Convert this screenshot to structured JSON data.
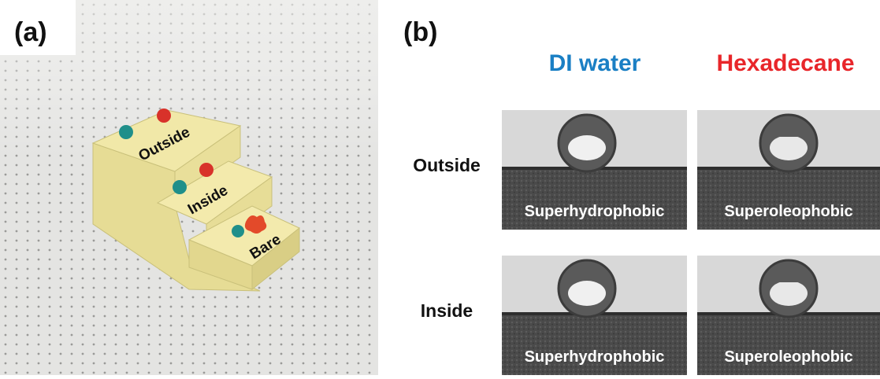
{
  "panel_a": {
    "label": "(a)",
    "block_labels": [
      "Outside",
      "Inside",
      "Bare"
    ]
  },
  "panel_b": {
    "label": "(b)",
    "columns": [
      "DI water",
      "Hexadecane"
    ],
    "rows": [
      {
        "label": "Outside",
        "cells": [
          "Superhydrophobic",
          "Superoleophobic"
        ]
      },
      {
        "label": "Inside",
        "cells": [
          "Superhydrophobic",
          "Superoleophobic"
        ]
      }
    ]
  }
}
